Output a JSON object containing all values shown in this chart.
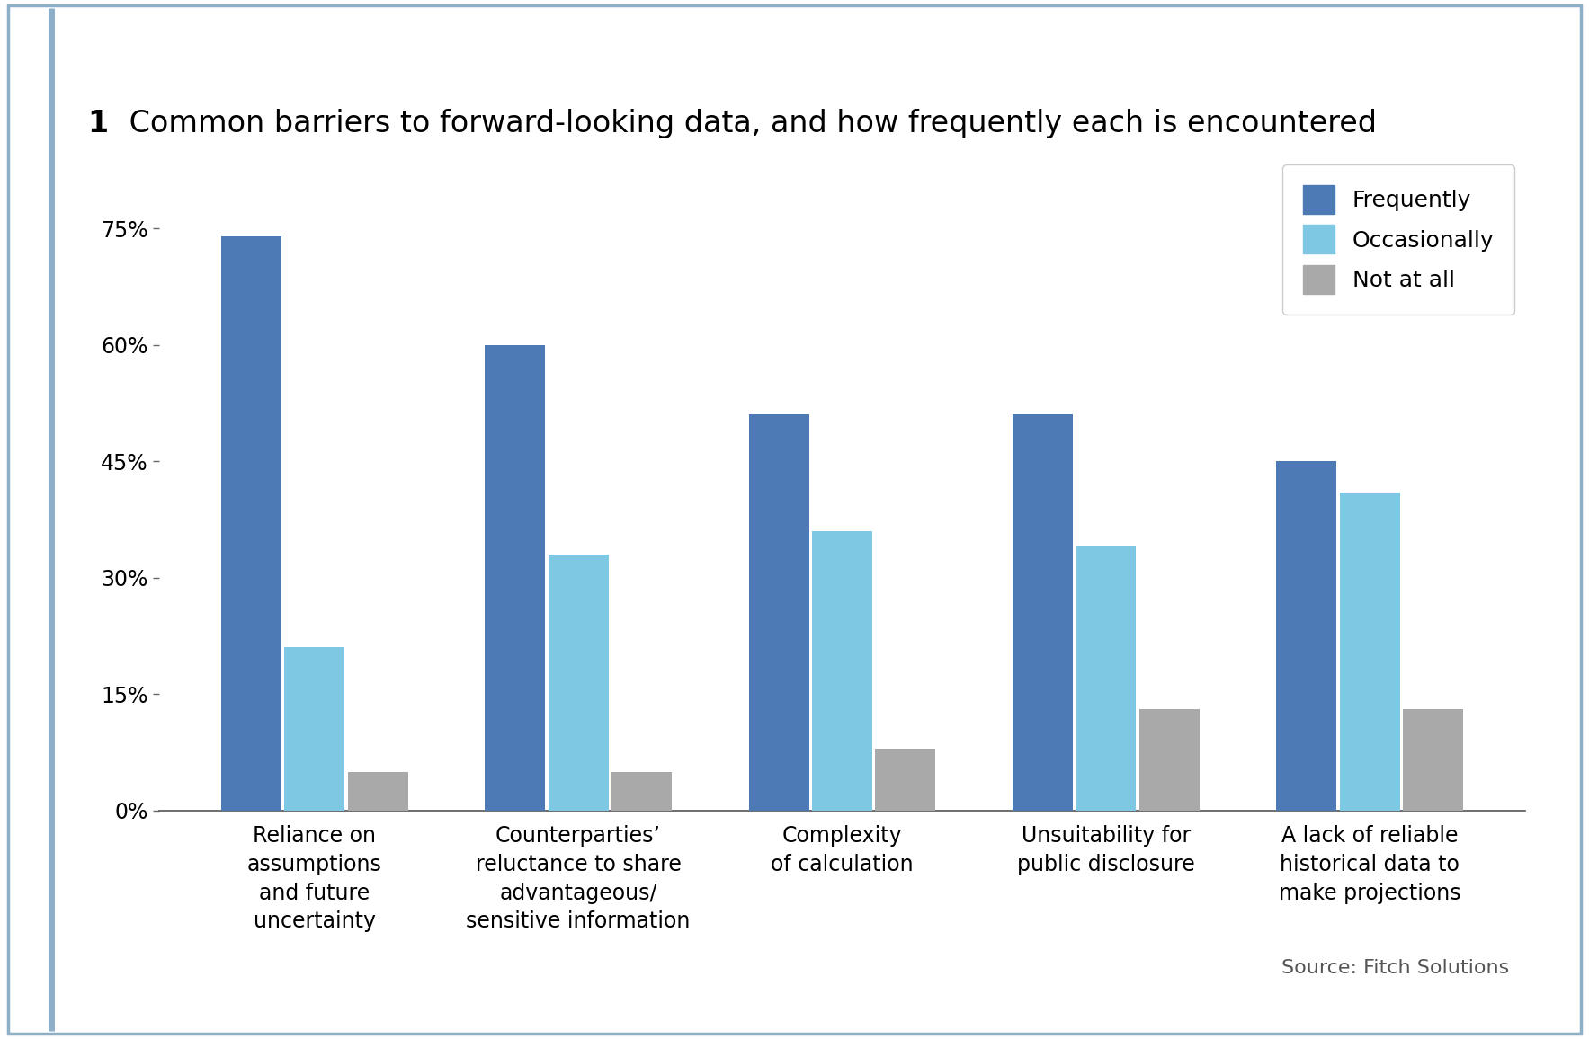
{
  "title_number": "1",
  "title_text": " Common barriers to forward-looking data, and how frequently each is encountered",
  "categories": [
    "Reliance on\nassumptions\nand future\nuncertainty",
    "Counterparties’\nreluctance to share\nadvantageous/\nsensitive information",
    "Complexity\nof calculation",
    "Unsuitability for\npublic disclosure",
    "A lack of reliable\nhistorical data to\nmake projections"
  ],
  "series": {
    "Frequently": [
      74,
      60,
      51,
      51,
      45
    ],
    "Occasionally": [
      21,
      33,
      36,
      34,
      41
    ],
    "Not at all": [
      5,
      5,
      8,
      13,
      13
    ]
  },
  "colors": {
    "Frequently": "#4d7ab5",
    "Occasionally": "#7ec8e3",
    "Not at all": "#a9a9a9"
  },
  "yticks": [
    0,
    15,
    30,
    45,
    60,
    75
  ],
  "ytick_labels": [
    "0%",
    "15%",
    "30%",
    "45%",
    "60%",
    "75%"
  ],
  "ylim": [
    0,
    83
  ],
  "source": "Source: Fitch Solutions",
  "background_color": "#ffffff",
  "border_color": "#8dafc8",
  "left_accent_color": "#8dafc8",
  "title_fontsize": 24,
  "tick_fontsize": 17,
  "legend_fontsize": 18,
  "source_fontsize": 16,
  "bar_width": 0.24
}
